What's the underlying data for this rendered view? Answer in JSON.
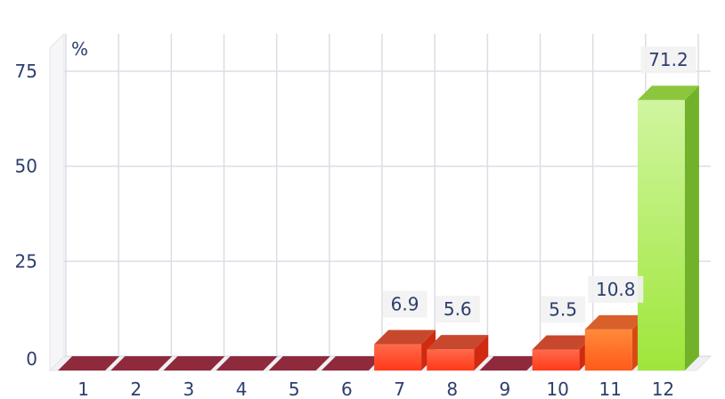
{
  "chart_data": {
    "type": "bar",
    "categories": [
      "1",
      "2",
      "3",
      "4",
      "5",
      "6",
      "7",
      "8",
      "9",
      "10",
      "11",
      "12"
    ],
    "values": [
      0,
      0,
      0,
      0,
      0,
      0,
      6.9,
      5.6,
      0,
      5.5,
      10.8,
      71.2
    ],
    "data_labels": [
      "",
      "",
      "",
      "",
      "",
      "",
      "6.9",
      "5.6",
      "",
      "5.5",
      "10.8",
      "71.2"
    ],
    "unit_label": "%",
    "yticks": [
      "0",
      "25",
      "50",
      "75"
    ],
    "ylim": [
      0,
      75
    ],
    "grid": true,
    "style": "3d",
    "colors": {
      "zero_bar": "#8e2a3c",
      "low_bar": "#ff4a2a",
      "mid_bar": "#ff6a22",
      "high_bar": "#a8e84a"
    }
  }
}
